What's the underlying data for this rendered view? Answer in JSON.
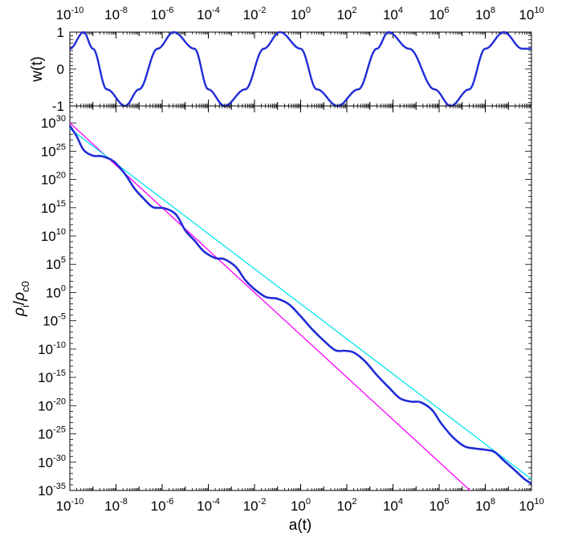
{
  "chart_data": [
    {
      "type": "line",
      "panel": "top",
      "xlabel": "",
      "ylabel": "w(t)",
      "xscale": "log",
      "xlim_exp": [
        -10,
        10
      ],
      "ylim": [
        -1,
        1
      ],
      "x_tick_labels": [
        "10^-10",
        "10^-8",
        "10^-6",
        "10^-4",
        "10^-2",
        "10^0",
        "10^2",
        "10^4",
        "10^6",
        "10^8",
        "10^10"
      ],
      "y_tick_labels": [
        "1",
        "0",
        "-1"
      ],
      "y_ticks": [
        1,
        0,
        -1
      ],
      "x_tick_position": "top",
      "grid": false,
      "series": [
        {
          "color": "#1f2bd6",
          "description_of_shape": "cosine oscillation in log10 a",
          "x_log10": [
            -10.0,
            -9.4,
            -9.0,
            -8.4,
            -7.6,
            -7.0,
            -6.2,
            -5.5,
            -4.6,
            -4.0,
            -3.3,
            -2.4,
            -1.6,
            -0.9,
            0.0,
            0.7,
            1.6,
            2.5,
            3.3,
            3.8,
            4.7,
            5.8,
            6.5,
            7.3,
            8.0,
            8.8,
            9.6,
            10.0
          ],
          "y": [
            0.55,
            1.0,
            0.55,
            -0.55,
            -1.0,
            -0.55,
            0.55,
            1.0,
            0.55,
            -0.55,
            -1.0,
            -0.55,
            0.55,
            1.0,
            0.55,
            -0.55,
            -1.0,
            -0.55,
            0.55,
            1.0,
            0.55,
            -0.55,
            -1.0,
            -0.55,
            0.55,
            1.0,
            0.55,
            0.55
          ]
        }
      ]
    },
    {
      "type": "line",
      "panel": "bottom",
      "xlabel": "a(t)",
      "ylabel": "ρ_i/ρ_c0",
      "xscale": "log",
      "yscale": "log",
      "xlim_exp": [
        -10,
        10
      ],
      "ylim_exp": [
        -35,
        33
      ],
      "x_tick_labels": [
        "10^-10",
        "10^-8",
        "10^-6",
        "10^-4",
        "10^-2",
        "10^0",
        "10^2",
        "10^4",
        "10^6",
        "10^8",
        "10^10"
      ],
      "y_tick_labels": [
        "10^30",
        "10^25",
        "10^20",
        "10^15",
        "10^10",
        "10^5",
        "10^0",
        "10^-5",
        "10^-10",
        "10^-15",
        "10^-20",
        "10^-25",
        "10^-30",
        "10^-35"
      ],
      "grid": false,
      "series": [
        {
          "color": "#1f2bd6",
          "x_log10": [
            -10.0,
            -9.7,
            -9.4,
            -9.0,
            -8.6,
            -8.1,
            -7.6,
            -7.2,
            -6.8,
            -6.4,
            -5.9,
            -5.4,
            -5.0,
            -4.6,
            -4.2,
            -3.7,
            -3.3,
            -2.8,
            -2.4,
            -2.0,
            -1.5,
            -1.0,
            -0.5,
            0.0,
            0.5,
            1.0,
            1.5,
            1.9,
            2.3,
            2.8,
            3.3,
            3.8,
            4.3,
            4.8,
            5.2,
            5.7,
            6.1,
            6.6,
            7.1,
            7.6,
            8.0,
            8.4,
            8.8,
            9.3,
            9.7,
            10.0
          ],
          "y_log10": [
            29.5,
            27.6,
            25.2,
            24.2,
            24.1,
            23.2,
            20.9,
            18.4,
            16.6,
            15.1,
            14.9,
            13.8,
            11.0,
            9.2,
            7.3,
            6.1,
            5.9,
            4.5,
            2.2,
            0.6,
            -0.8,
            -1.1,
            -2.1,
            -4.2,
            -6.5,
            -8.5,
            -10.2,
            -10.3,
            -10.6,
            -12.2,
            -14.6,
            -16.7,
            -18.7,
            -19.3,
            -19.4,
            -20.8,
            -23.2,
            -25.6,
            -27.2,
            -27.6,
            -27.8,
            -28.2,
            -29.7,
            -31.5,
            -33.0,
            -33.8
          ]
        },
        {
          "color": "#00e5ee",
          "x_log10": [
            -10.0,
            10.0
          ],
          "y_log10": [
            29.0,
            -33.0
          ]
        },
        {
          "color": "#ff00ff",
          "x_log10": [
            -10.0,
            7.34
          ],
          "y_log10": [
            30.0,
            -35.0
          ]
        }
      ]
    }
  ]
}
